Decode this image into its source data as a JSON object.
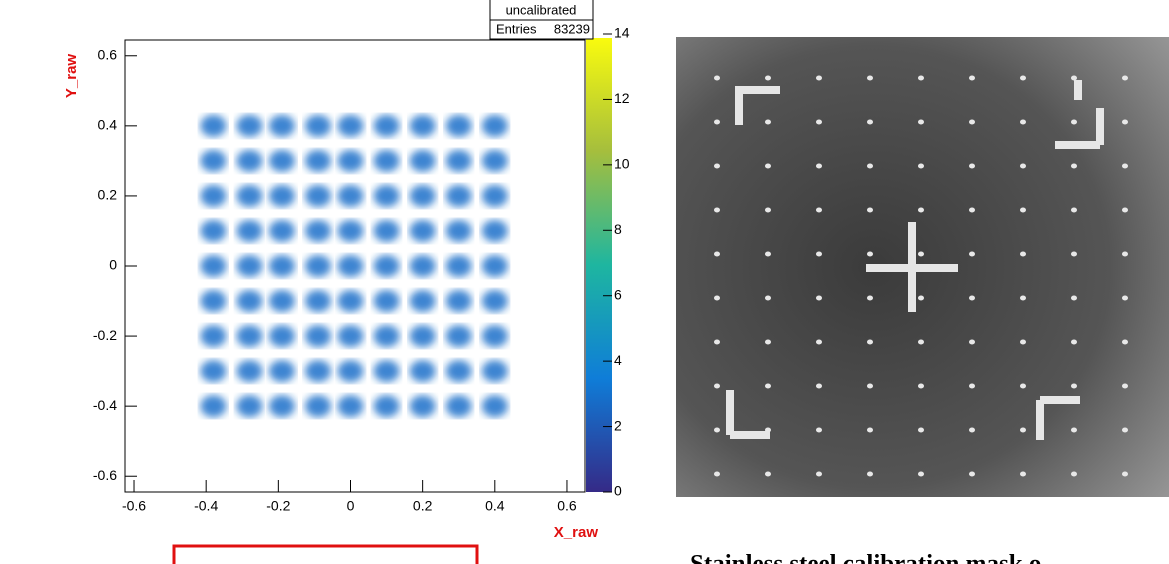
{
  "chart_data": {
    "type": "scatter",
    "x_label": "X_raw",
    "y_label": "Y_raw",
    "stats": {
      "name": "uncalibrated",
      "entries_label": "Entries",
      "entries": 83239
    },
    "xlim": [
      -0.625,
      0.65
    ],
    "ylim": [
      -0.645,
      0.645
    ],
    "xticks": [
      -0.6,
      -0.4,
      -0.2,
      0,
      0.2,
      0.4,
      0.6
    ],
    "yticks": [
      -0.6,
      -0.4,
      -0.2,
      0,
      0.2,
      0.4,
      0.6
    ],
    "zlim": [
      0,
      14
    ],
    "zticks": [
      0,
      2,
      4,
      6,
      8,
      10,
      12,
      14
    ],
    "series": [
      {
        "color": "#1f6fc9",
        "x": [
          -0.38,
          -0.28,
          -0.19,
          -0.09,
          0,
          0.1,
          0.2,
          0.3,
          0.4,
          -0.38,
          -0.28,
          -0.19,
          -0.09,
          0,
          0.1,
          0.2,
          0.3,
          0.4,
          -0.38,
          -0.28,
          -0.19,
          -0.09,
          0,
          0.1,
          0.2,
          0.3,
          0.4,
          -0.38,
          -0.28,
          -0.19,
          -0.09,
          0,
          0.1,
          0.2,
          0.3,
          0.4,
          -0.38,
          -0.28,
          -0.19,
          -0.09,
          0,
          0.1,
          0.2,
          0.3,
          0.4,
          -0.38,
          -0.28,
          -0.19,
          -0.09,
          0,
          0.1,
          0.2,
          0.3,
          0.4,
          -0.38,
          -0.28,
          -0.19,
          -0.09,
          0,
          0.1,
          0.2,
          0.3,
          0.4,
          -0.38,
          -0.28,
          -0.19,
          -0.09,
          0,
          0.1,
          0.2,
          0.3,
          0.4,
          -0.38,
          -0.28,
          -0.19,
          -0.09,
          0,
          0.1,
          0.2,
          0.3,
          0.4
        ],
        "y": [
          0.4,
          0.4,
          0.4,
          0.4,
          0.4,
          0.4,
          0.4,
          0.4,
          0.4,
          0.3,
          0.3,
          0.3,
          0.3,
          0.3,
          0.3,
          0.3,
          0.3,
          0.3,
          0.2,
          0.2,
          0.2,
          0.2,
          0.2,
          0.2,
          0.2,
          0.2,
          0.2,
          0.1,
          0.1,
          0.1,
          0.1,
          0.1,
          0.1,
          0.1,
          0.1,
          0.1,
          0,
          0,
          0,
          0,
          0,
          0,
          0,
          0,
          0,
          -0.1,
          -0.1,
          -0.1,
          -0.1,
          -0.1,
          -0.1,
          -0.1,
          -0.1,
          -0.1,
          -0.2,
          -0.2,
          -0.2,
          -0.2,
          -0.2,
          -0.2,
          -0.2,
          -0.2,
          -0.2,
          -0.3,
          -0.3,
          -0.3,
          -0.3,
          -0.3,
          -0.3,
          -0.3,
          -0.3,
          -0.3,
          -0.4,
          -0.4,
          -0.4,
          -0.4,
          -0.4,
          -0.4,
          -0.4,
          -0.4,
          -0.4
        ]
      }
    ]
  },
  "caption": "Stainless steel calibration mask o"
}
